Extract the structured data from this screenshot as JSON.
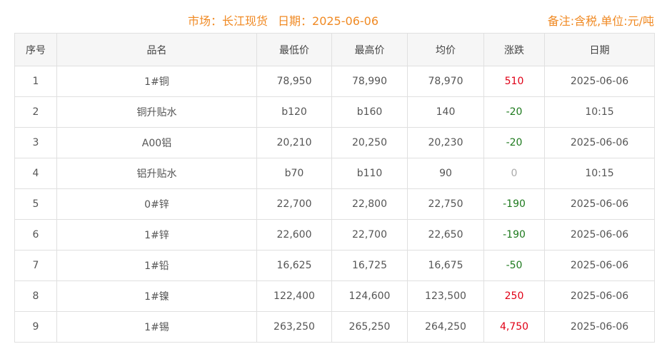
{
  "header": {
    "market": "市场：长江现货",
    "date": "日期：2025-06-06",
    "note": "备注:含税,单位:元/吨"
  },
  "colors": {
    "accent": "#f08a24",
    "up": "#e00016",
    "down": "#1e7a1e",
    "flat": "#aaaaaa"
  },
  "columns": [
    "序号",
    "品名",
    "最低价",
    "最高价",
    "均价",
    "涨跌",
    "日期"
  ],
  "rows": [
    {
      "no": "1",
      "name": "1#铜",
      "low": "78,950",
      "high": "78,990",
      "avg": "78,970",
      "change": "510",
      "trend": "up",
      "date": "2025-06-06"
    },
    {
      "no": "2",
      "name": "铜升贴水",
      "low": "b120",
      "high": "b160",
      "avg": "140",
      "change": "-20",
      "trend": "down",
      "date": "10:15"
    },
    {
      "no": "3",
      "name": "A00铝",
      "low": "20,210",
      "high": "20,250",
      "avg": "20,230",
      "change": "-20",
      "trend": "down",
      "date": "2025-06-06"
    },
    {
      "no": "4",
      "name": "铝升贴水",
      "low": "b70",
      "high": "b110",
      "avg": "90",
      "change": "0",
      "trend": "flat",
      "date": "10:15"
    },
    {
      "no": "5",
      "name": "0#锌",
      "low": "22,700",
      "high": "22,800",
      "avg": "22,750",
      "change": "-190",
      "trend": "down",
      "date": "2025-06-06"
    },
    {
      "no": "6",
      "name": "1#锌",
      "low": "22,600",
      "high": "22,700",
      "avg": "22,650",
      "change": "-190",
      "trend": "down",
      "date": "2025-06-06"
    },
    {
      "no": "7",
      "name": "1#铅",
      "low": "16,625",
      "high": "16,725",
      "avg": "16,675",
      "change": "-50",
      "trend": "down",
      "date": "2025-06-06"
    },
    {
      "no": "8",
      "name": "1#镍",
      "low": "122,400",
      "high": "124,600",
      "avg": "123,500",
      "change": "250",
      "trend": "up",
      "date": "2025-06-06"
    },
    {
      "no": "9",
      "name": "1#锡",
      "low": "263,250",
      "high": "265,250",
      "avg": "264,250",
      "change": "4,750",
      "trend": "up",
      "date": "2025-06-06"
    }
  ]
}
